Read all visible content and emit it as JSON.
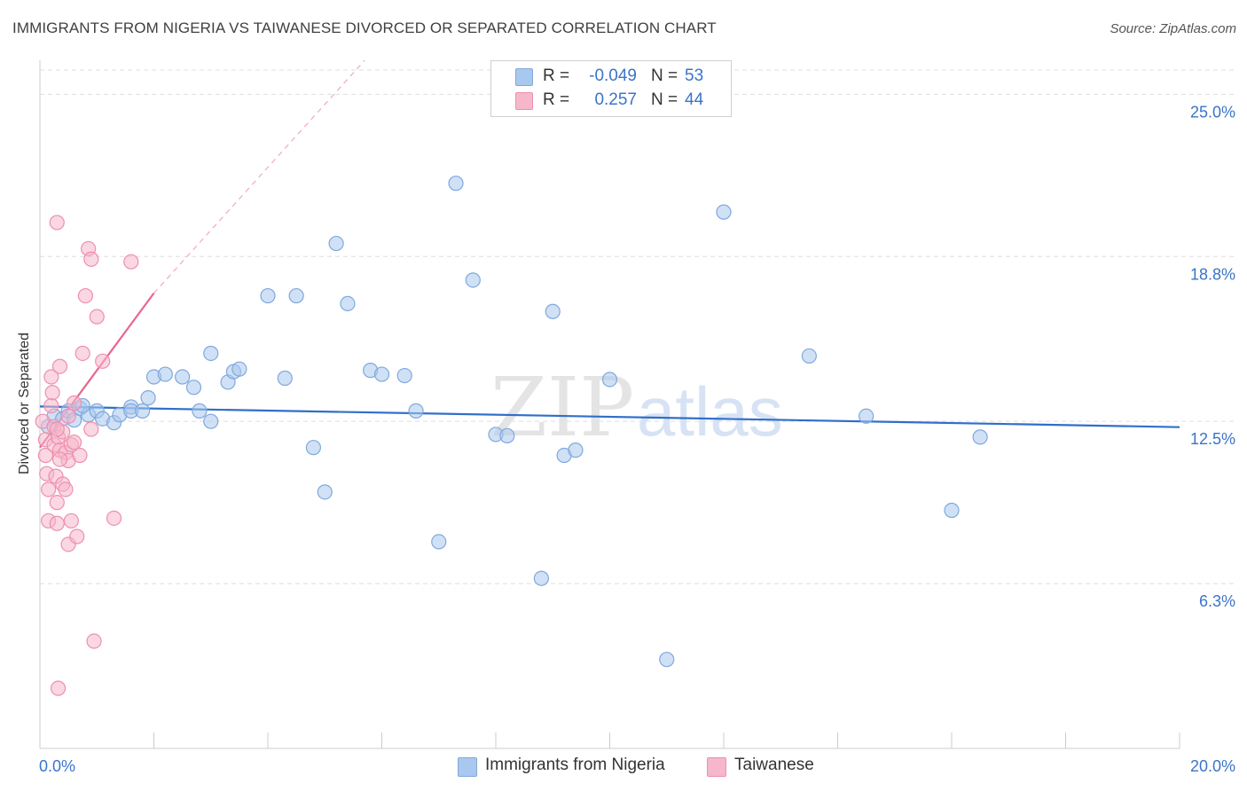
{
  "header": {
    "title": "IMMIGRANTS FROM NIGERIA VS TAIWANESE DIVORCED OR SEPARATED CORRELATION CHART",
    "source": "Source: ZipAtlas.com"
  },
  "watermark": {
    "part1": "ZIP",
    "part2": "atlas"
  },
  "legend": {
    "rows": [
      {
        "r_label": "R =",
        "r_value": "-0.049",
        "n_label": "N =",
        "n_value": "53",
        "color": "#a9c8ef"
      },
      {
        "r_label": "R =",
        "r_value": "0.257",
        "n_label": "N =",
        "n_value": "44",
        "color": "#f6b7cb"
      }
    ]
  },
  "bottom_legend": {
    "items": [
      {
        "label": "Immigrants from Nigeria",
        "color": "#a9c8ef"
      },
      {
        "label": "Taiwanese",
        "color": "#f6b7cb"
      }
    ]
  },
  "colors": {
    "blue_fill": "#a9c8ef",
    "blue_stroke": "#7fa8dd",
    "blue_line": "#2f6fca",
    "pink_fill": "#f6b7cb",
    "pink_stroke": "#ee8fae",
    "pink_line": "#e8668f",
    "axis_text": "#3a74c9",
    "grid": "#dddddd"
  },
  "chart_data": {
    "type": "scatter",
    "title": "IMMIGRANTS FROM NIGERIA VS TAIWANESE DIVORCED OR SEPARATED CORRELATION CHART",
    "xlabel": "",
    "ylabel": "Divorced or Separated",
    "xlim": [
      0,
      20
    ],
    "ylim": [
      0,
      26.3
    ],
    "x_tick_labels": [
      {
        "value": 0,
        "label": "0.0%"
      },
      {
        "value": 20,
        "label": "20.0%"
      }
    ],
    "y_ticks": [
      {
        "value": 6.3,
        "label": "6.3%"
      },
      {
        "value": 12.5,
        "label": "12.5%"
      },
      {
        "value": 18.8,
        "label": "18.8%"
      },
      {
        "value": 25.0,
        "label": "25.0%"
      }
    ],
    "series": [
      {
        "name": "Immigrants from Nigeria",
        "r": -0.049,
        "n": 53,
        "trend": {
          "x": [
            0,
            20
          ],
          "y": [
            13.07,
            12.28
          ],
          "style": "solid"
        },
        "points": [
          [
            0.15,
            12.3
          ],
          [
            0.25,
            12.7
          ],
          [
            0.4,
            12.6
          ],
          [
            0.5,
            12.9
          ],
          [
            0.6,
            12.55
          ],
          [
            0.7,
            13.0
          ],
          [
            0.85,
            12.75
          ],
          [
            1.0,
            12.9
          ],
          [
            1.1,
            12.6
          ],
          [
            1.3,
            12.45
          ],
          [
            1.4,
            12.75
          ],
          [
            1.6,
            13.05
          ],
          [
            1.6,
            12.9
          ],
          [
            1.8,
            12.9
          ],
          [
            1.9,
            13.4
          ],
          [
            2.0,
            14.2
          ],
          [
            2.2,
            14.3
          ],
          [
            2.5,
            14.2
          ],
          [
            2.7,
            13.8
          ],
          [
            2.8,
            12.9
          ],
          [
            3.0,
            15.1
          ],
          [
            3.0,
            12.5
          ],
          [
            3.3,
            14.0
          ],
          [
            3.4,
            14.4
          ],
          [
            3.5,
            14.5
          ],
          [
            4.0,
            17.3
          ],
          [
            4.3,
            14.15
          ],
          [
            4.5,
            17.3
          ],
          [
            4.8,
            11.5
          ],
          [
            5.0,
            9.8
          ],
          [
            5.2,
            19.3
          ],
          [
            5.4,
            17.0
          ],
          [
            5.8,
            14.45
          ],
          [
            6.0,
            14.3
          ],
          [
            6.4,
            14.25
          ],
          [
            6.6,
            12.9
          ],
          [
            7.0,
            7.9
          ],
          [
            7.3,
            21.6
          ],
          [
            7.6,
            17.9
          ],
          [
            8.0,
            12.0
          ],
          [
            8.2,
            11.95
          ],
          [
            8.8,
            6.5
          ],
          [
            9.0,
            16.7
          ],
          [
            9.2,
            11.2
          ],
          [
            9.4,
            11.4
          ],
          [
            10.0,
            14.1
          ],
          [
            11.0,
            3.4
          ],
          [
            12.0,
            20.5
          ],
          [
            13.5,
            15.0
          ],
          [
            14.5,
            12.7
          ],
          [
            16.0,
            9.1
          ],
          [
            16.5,
            11.9
          ],
          [
            0.75,
            13.1
          ]
        ]
      },
      {
        "name": "Taiwanese",
        "r": 0.257,
        "n": 44,
        "trend": {
          "x": [
            0,
            2.0
          ],
          "y": [
            11.5,
            17.4
          ],
          "style": "solid"
        },
        "trend_extension": {
          "x": [
            2.0,
            5.7
          ],
          "y": [
            17.4,
            26.3
          ],
          "style": "dashed"
        },
        "points": [
          [
            0.05,
            12.5
          ],
          [
            0.1,
            11.8
          ],
          [
            0.1,
            11.2
          ],
          [
            0.12,
            10.5
          ],
          [
            0.15,
            9.9
          ],
          [
            0.15,
            8.7
          ],
          [
            0.2,
            13.1
          ],
          [
            0.2,
            14.2
          ],
          [
            0.22,
            13.6
          ],
          [
            0.25,
            12.3
          ],
          [
            0.25,
            11.6
          ],
          [
            0.28,
            10.4
          ],
          [
            0.3,
            9.4
          ],
          [
            0.3,
            8.6
          ],
          [
            0.32,
            11.9
          ],
          [
            0.35,
            11.4
          ],
          [
            0.35,
            14.6
          ],
          [
            0.4,
            12.1
          ],
          [
            0.4,
            10.1
          ],
          [
            0.45,
            11.3
          ],
          [
            0.45,
            9.9
          ],
          [
            0.5,
            12.7
          ],
          [
            0.5,
            11.0
          ],
          [
            0.5,
            7.8
          ],
          [
            0.55,
            11.6
          ],
          [
            0.55,
            8.7
          ],
          [
            0.6,
            11.7
          ],
          [
            0.6,
            13.2
          ],
          [
            0.65,
            8.1
          ],
          [
            0.7,
            11.2
          ],
          [
            0.75,
            15.1
          ],
          [
            0.8,
            17.3
          ],
          [
            0.85,
            19.1
          ],
          [
            0.9,
            12.2
          ],
          [
            0.95,
            4.1
          ],
          [
            0.3,
            12.2
          ],
          [
            0.35,
            11.05
          ],
          [
            0.9,
            18.7
          ],
          [
            1.0,
            16.5
          ],
          [
            1.1,
            14.8
          ],
          [
            1.3,
            8.8
          ],
          [
            1.6,
            18.6
          ],
          [
            0.3,
            20.1
          ],
          [
            0.32,
            2.3
          ]
        ]
      }
    ]
  }
}
